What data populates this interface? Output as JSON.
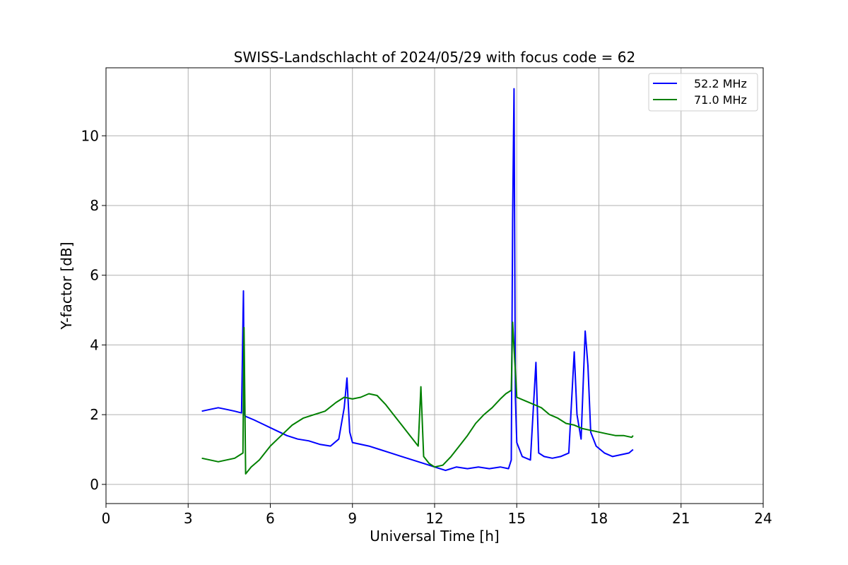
{
  "chart_data": {
    "type": "line",
    "title": "SWISS-Landschlacht of 2024/05/29 with focus code = 62",
    "xlabel": "Universal Time [h]",
    "ylabel": "Y-factor [dB]",
    "xlim": [
      0,
      24
    ],
    "ylim": [
      -0.55,
      11.95
    ],
    "xticks": [
      0,
      3,
      6,
      9,
      12,
      15,
      18,
      21,
      24
    ],
    "yticks": [
      0,
      2,
      4,
      6,
      8,
      10
    ],
    "grid": true,
    "legend_position": "top-right",
    "series": [
      {
        "name": "52.2 MHz",
        "color": "#0000ff",
        "x": [
          3.5,
          3.8,
          4.1,
          4.4,
          4.7,
          4.95,
          5.02,
          5.05,
          5.1,
          5.4,
          5.8,
          6.2,
          6.6,
          7.0,
          7.4,
          7.8,
          8.2,
          8.5,
          8.7,
          8.8,
          8.9,
          9.0,
          9.3,
          9.6,
          10.0,
          10.4,
          10.8,
          11.2,
          11.6,
          12.0,
          12.4,
          12.8,
          13.2,
          13.6,
          14.0,
          14.4,
          14.7,
          14.8,
          14.85,
          14.9,
          14.95,
          15.0,
          15.2,
          15.5,
          15.7,
          15.8,
          16.0,
          16.3,
          16.6,
          16.9,
          17.1,
          17.2,
          17.35,
          17.5,
          17.6,
          17.7,
          17.9,
          18.2,
          18.5,
          18.8,
          19.1,
          19.25
        ],
        "y": [
          2.1,
          2.15,
          2.2,
          2.15,
          2.1,
          2.05,
          5.55,
          2.0,
          1.95,
          1.85,
          1.7,
          1.55,
          1.4,
          1.3,
          1.25,
          1.15,
          1.1,
          1.3,
          2.2,
          3.05,
          1.5,
          1.2,
          1.15,
          1.1,
          1.0,
          0.9,
          0.8,
          0.7,
          0.6,
          0.5,
          0.4,
          0.5,
          0.45,
          0.5,
          0.45,
          0.5,
          0.45,
          0.7,
          7.6,
          11.35,
          2.5,
          1.2,
          0.8,
          0.7,
          3.5,
          0.9,
          0.8,
          0.75,
          0.8,
          0.9,
          3.8,
          2.0,
          1.3,
          4.4,
          3.4,
          1.5,
          1.1,
          0.9,
          0.8,
          0.85,
          0.9,
          1.0
        ]
      },
      {
        "name": "71.0 MHz",
        "color": "#008000",
        "x": [
          3.5,
          3.8,
          4.1,
          4.4,
          4.7,
          4.9,
          5.0,
          5.04,
          5.1,
          5.3,
          5.6,
          6.0,
          6.4,
          6.8,
          7.2,
          7.6,
          8.0,
          8.4,
          8.7,
          9.0,
          9.3,
          9.6,
          9.9,
          10.2,
          10.5,
          10.8,
          11.1,
          11.4,
          11.5,
          11.6,
          11.8,
          12.0,
          12.3,
          12.6,
          12.9,
          13.2,
          13.5,
          13.8,
          14.1,
          14.4,
          14.6,
          14.8,
          14.85,
          15.0,
          15.3,
          15.6,
          15.9,
          16.2,
          16.5,
          16.8,
          17.1,
          17.4,
          17.7,
          18.0,
          18.3,
          18.6,
          18.9,
          19.2,
          19.25
        ],
        "y": [
          0.75,
          0.7,
          0.65,
          0.7,
          0.75,
          0.85,
          0.9,
          4.5,
          0.3,
          0.5,
          0.7,
          1.1,
          1.4,
          1.7,
          1.9,
          2.0,
          2.1,
          2.35,
          2.5,
          2.45,
          2.5,
          2.6,
          2.55,
          2.3,
          2.0,
          1.7,
          1.4,
          1.1,
          2.8,
          0.8,
          0.6,
          0.5,
          0.55,
          0.8,
          1.1,
          1.4,
          1.75,
          2.0,
          2.2,
          2.45,
          2.6,
          2.7,
          4.65,
          2.5,
          2.4,
          2.3,
          2.2,
          2.0,
          1.9,
          1.75,
          1.7,
          1.6,
          1.55,
          1.5,
          1.45,
          1.4,
          1.4,
          1.35,
          1.4
        ]
      }
    ]
  }
}
